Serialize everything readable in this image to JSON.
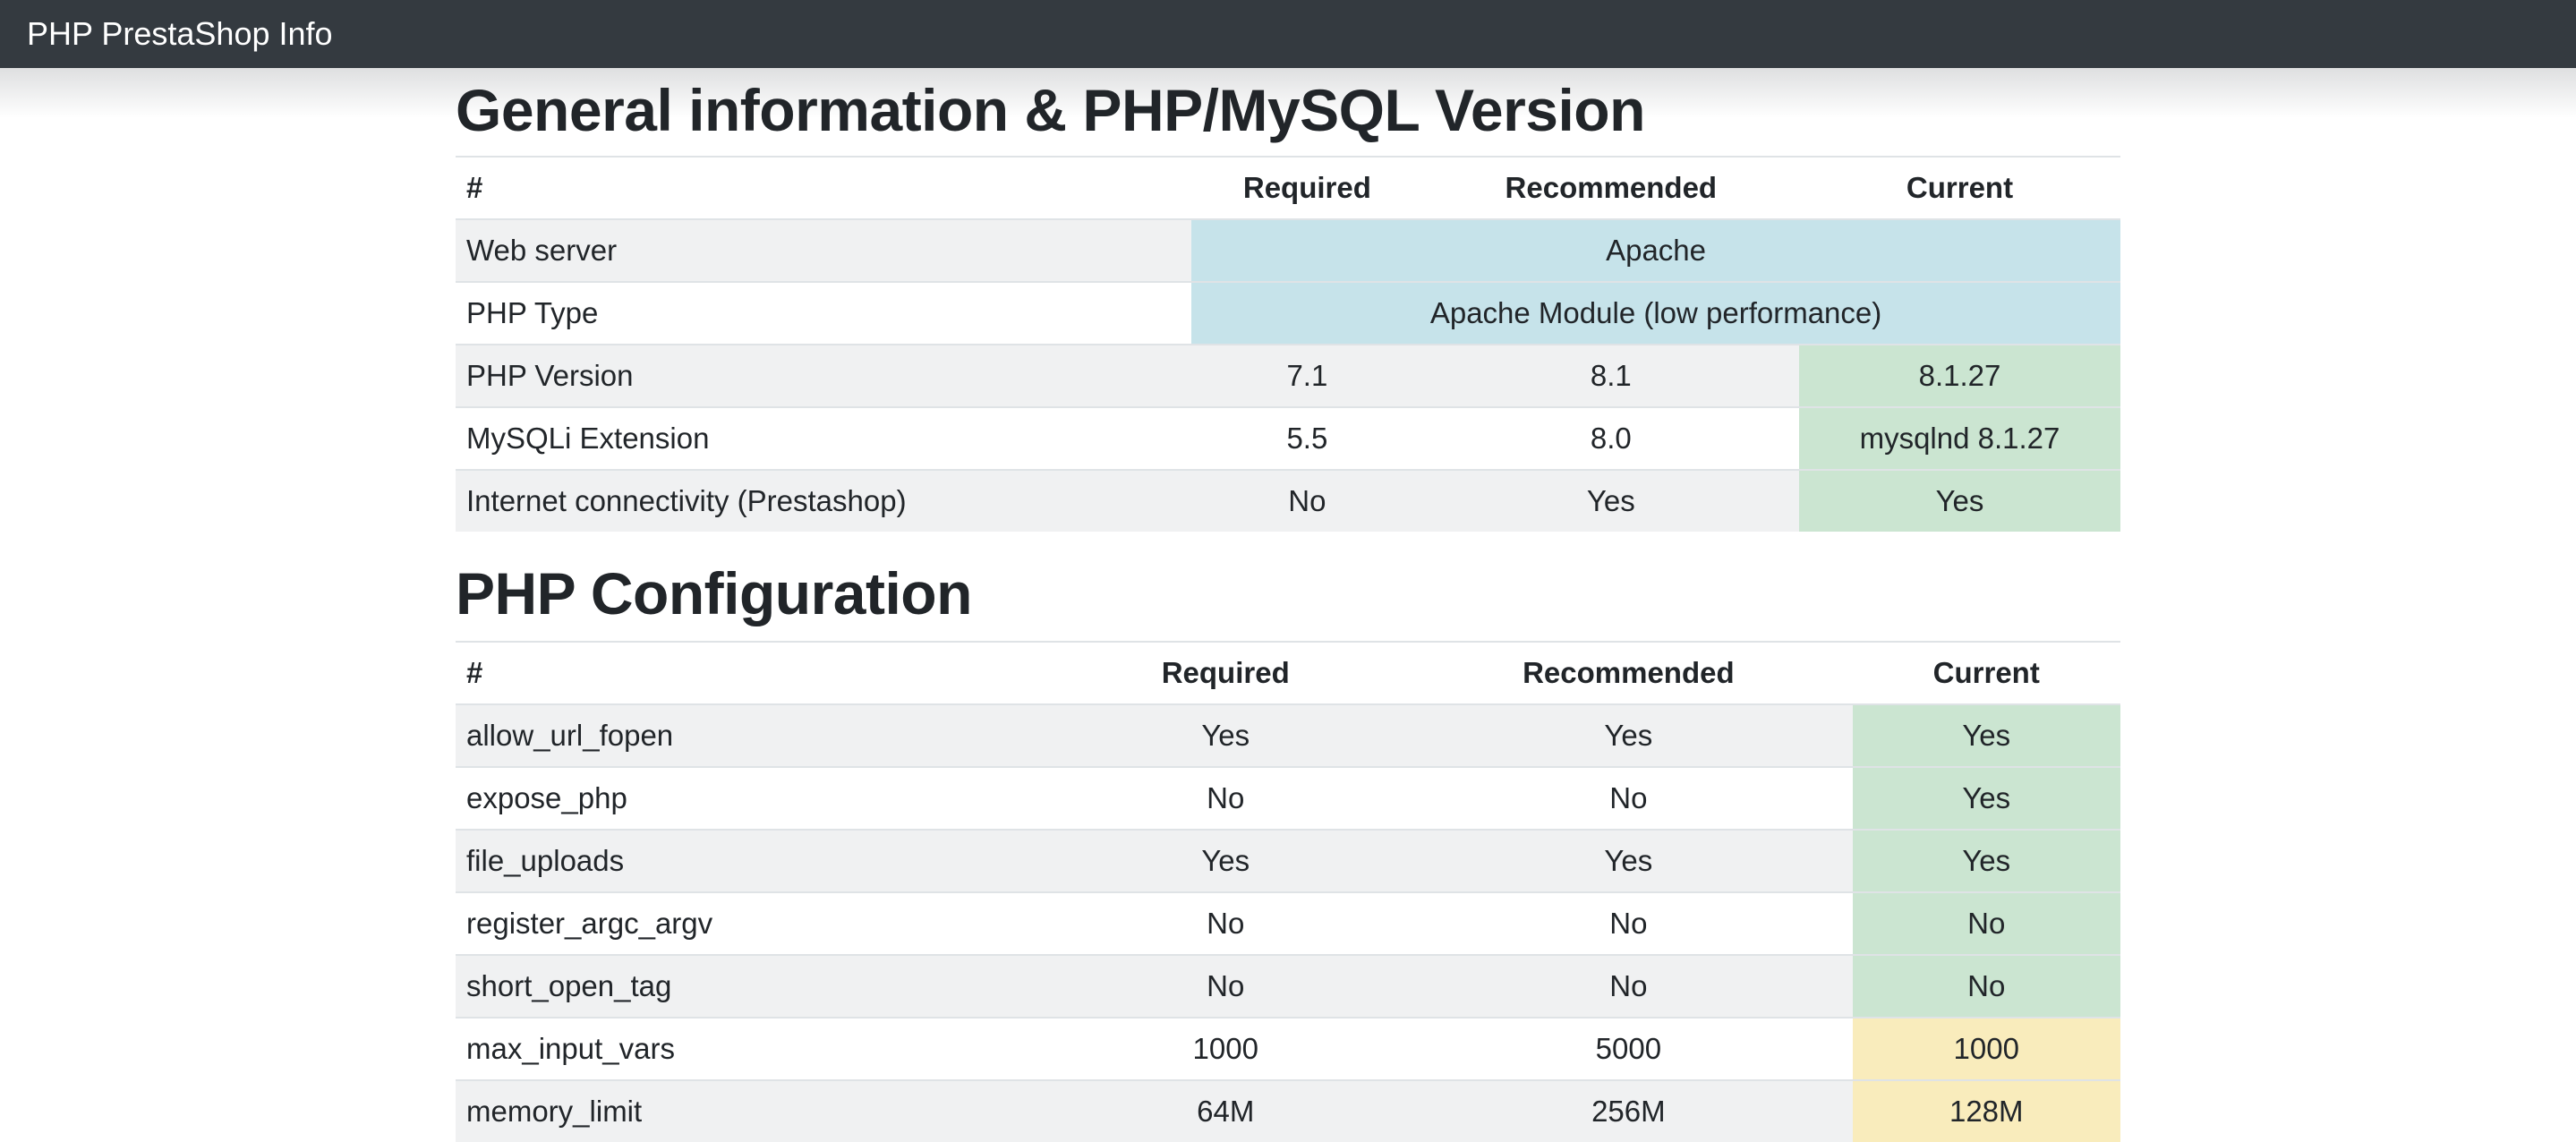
{
  "navbar": {
    "title": "PHP PrestaShop Info"
  },
  "colors": {
    "navbar-bg": "#343a40",
    "navbar-text": "#ffffff",
    "info-bg": "#c6e3ea",
    "success-bg": "#cbe5d1",
    "warning-bg": "#f9ecbc",
    "stripe-bg": "#f0f1f2",
    "border": "#dfe3e6",
    "text": "#212529"
  },
  "sections": [
    {
      "title": "General information & PHP/MySQL Version",
      "columns": [
        "#",
        "Required",
        "Recommended",
        "Current"
      ],
      "rows": [
        {
          "name": "Web server",
          "span": "Apache",
          "status": "info"
        },
        {
          "name": "PHP Type",
          "span": "Apache Module (low performance)",
          "status": "info"
        },
        {
          "name": "PHP Version",
          "required": "7.1",
          "recommended": "8.1",
          "current": "8.1.27",
          "status": "success"
        },
        {
          "name": "MySQLi Extension",
          "required": "5.5",
          "recommended": "8.0",
          "current": "mysqlnd 8.1.27",
          "status": "success"
        },
        {
          "name": "Internet connectivity (Prestashop)",
          "required": "No",
          "recommended": "Yes",
          "current": "Yes",
          "status": "success"
        }
      ]
    },
    {
      "title": "PHP Configuration",
      "columns": [
        "#",
        "Required",
        "Recommended",
        "Current"
      ],
      "rows": [
        {
          "name": "allow_url_fopen",
          "required": "Yes",
          "recommended": "Yes",
          "current": "Yes",
          "status": "success"
        },
        {
          "name": "expose_php",
          "required": "No",
          "recommended": "No",
          "current": "Yes",
          "status": "success"
        },
        {
          "name": "file_uploads",
          "required": "Yes",
          "recommended": "Yes",
          "current": "Yes",
          "status": "success"
        },
        {
          "name": "register_argc_argv",
          "required": "No",
          "recommended": "No",
          "current": "No",
          "status": "success"
        },
        {
          "name": "short_open_tag",
          "required": "No",
          "recommended": "No",
          "current": "No",
          "status": "success"
        },
        {
          "name": "max_input_vars",
          "required": "1000",
          "recommended": "5000",
          "current": "1000",
          "status": "warning"
        },
        {
          "name": "memory_limit",
          "required": "64M",
          "recommended": "256M",
          "current": "128M",
          "status": "warning"
        }
      ]
    }
  ]
}
